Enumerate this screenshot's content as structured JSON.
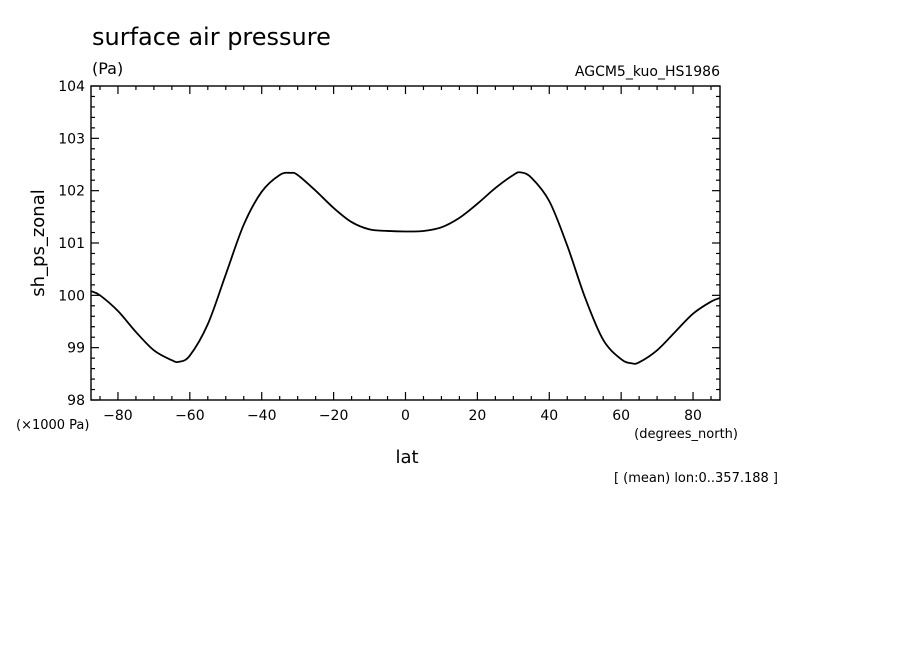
{
  "header": {
    "title": "surface air pressure",
    "units": "(Pa)",
    "model": "AGCM5_kuo_HS1986"
  },
  "footer": {
    "scale_note": "(×1000 Pa)",
    "x_units": "(degrees_north)",
    "mean_note": "[ (mean) lon:0..357.188 ]"
  },
  "chart_data": {
    "type": "line",
    "title": "surface air pressure",
    "xlabel": "lat",
    "ylabel": "sh_ps_zonal",
    "xlim": [
      -87.5,
      87.5
    ],
    "ylim": [
      98,
      104
    ],
    "xticks": [
      -80,
      -60,
      -40,
      -20,
      0,
      20,
      40,
      60,
      80
    ],
    "xtick_labels": [
      "−80",
      "−60",
      "−40",
      "−20",
      "0",
      "20",
      "40",
      "60",
      "80"
    ],
    "yticks": [
      98,
      99,
      100,
      101,
      102,
      103,
      104
    ],
    "ytick_labels": [
      "98",
      "99",
      "100",
      "101",
      "102",
      "103",
      "104"
    ],
    "grid": false,
    "series": [
      {
        "x": [
          -87.5,
          -85,
          -80,
          -75,
          -70,
          -65,
          -63,
          -60,
          -55,
          -50,
          -45,
          -40,
          -35,
          -32,
          -30,
          -25,
          -20,
          -15,
          -10,
          -5,
          0,
          5,
          10,
          15,
          20,
          25,
          30,
          32,
          35,
          40,
          45,
          50,
          55,
          60,
          63,
          65,
          70,
          75,
          80,
          85,
          87.5
        ],
        "y": [
          100.08,
          100.0,
          99.7,
          99.3,
          98.95,
          98.76,
          98.73,
          98.85,
          99.45,
          100.4,
          101.35,
          101.98,
          102.3,
          102.34,
          102.3,
          102.0,
          101.67,
          101.4,
          101.26,
          101.23,
          101.22,
          101.23,
          101.3,
          101.48,
          101.75,
          102.05,
          102.3,
          102.35,
          102.25,
          101.8,
          100.95,
          99.95,
          99.15,
          98.78,
          98.7,
          98.72,
          98.95,
          99.3,
          99.65,
          99.88,
          99.95
        ]
      }
    ]
  }
}
